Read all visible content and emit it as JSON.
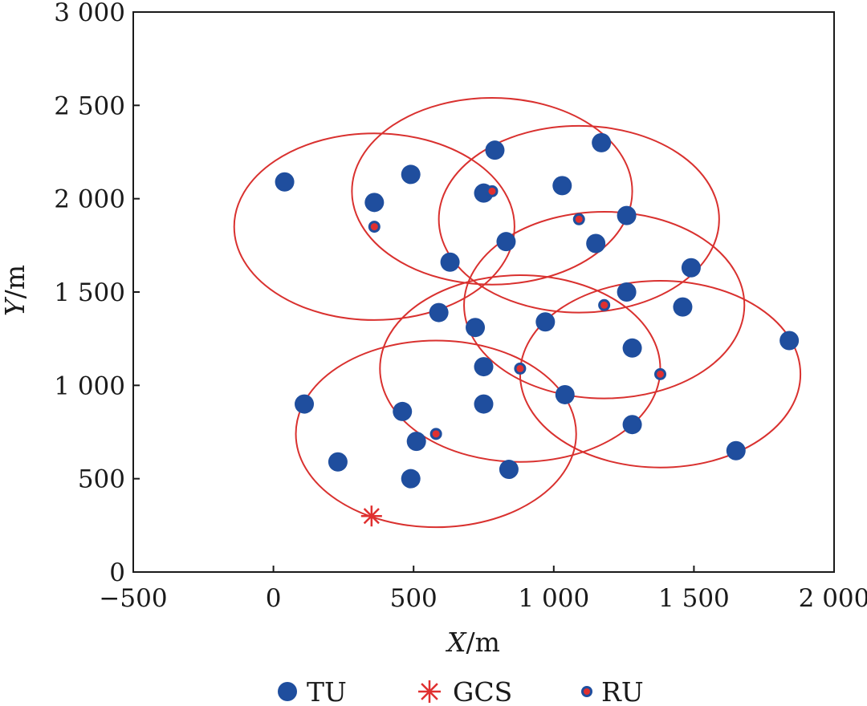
{
  "chart_data": {
    "type": "scatter",
    "xlabel": {
      "var": "X",
      "unit": "/m"
    },
    "ylabel": {
      "var": "Y",
      "unit": "/m"
    },
    "xlim": [
      -500,
      2000
    ],
    "ylim": [
      0,
      3000
    ],
    "xticks": [
      -500,
      0,
      500,
      1000,
      1500,
      2000
    ],
    "yticks": [
      0,
      500,
      1000,
      1500,
      2000,
      2500,
      3000
    ],
    "xtick_labels": [
      "−500",
      "0",
      "500",
      "1 000",
      "1 500",
      "2 000"
    ],
    "ytick_labels": [
      "0",
      "500",
      "1 000",
      "1 500",
      "2 000",
      "2 500",
      "3 000"
    ],
    "grid": false,
    "legend_position": "bottom",
    "colors": {
      "tu": "#1f4e9e",
      "ru": "#e03030",
      "gcs": "#e03030",
      "circle": "#d9312f"
    },
    "series": [
      {
        "name": "TU",
        "marker": "filled-circle",
        "points": [
          [
            40,
            2090
          ],
          [
            490,
            2130
          ],
          [
            360,
            1980
          ],
          [
            790,
            2260
          ],
          [
            750,
            2030
          ],
          [
            1030,
            2070
          ],
          [
            1170,
            2300
          ],
          [
            1260,
            1910
          ],
          [
            830,
            1770
          ],
          [
            1150,
            1760
          ],
          [
            630,
            1660
          ],
          [
            1490,
            1630
          ],
          [
            1260,
            1500
          ],
          [
            1460,
            1420
          ],
          [
            590,
            1390
          ],
          [
            720,
            1310
          ],
          [
            970,
            1340
          ],
          [
            1280,
            1200
          ],
          [
            1840,
            1240
          ],
          [
            750,
            1100
          ],
          [
            110,
            900
          ],
          [
            460,
            860
          ],
          [
            750,
            900
          ],
          [
            1040,
            950
          ],
          [
            510,
            700
          ],
          [
            1280,
            790
          ],
          [
            230,
            590
          ],
          [
            490,
            500
          ],
          [
            840,
            550
          ],
          [
            1650,
            650
          ]
        ]
      },
      {
        "name": "GCS",
        "marker": "asterisk",
        "points": [
          [
            350,
            300
          ]
        ]
      },
      {
        "name": "RU",
        "marker": "small-dot",
        "points": [
          [
            360,
            1850
          ],
          [
            780,
            2040
          ],
          [
            1090,
            1890
          ],
          [
            1180,
            1430
          ],
          [
            880,
            1090
          ],
          [
            1380,
            1060
          ],
          [
            580,
            740
          ]
        ]
      }
    ],
    "coverage_ellipses": [
      {
        "cx": 360,
        "cy": 1850,
        "rx": 500,
        "ry": 500
      },
      {
        "cx": 780,
        "cy": 2040,
        "rx": 500,
        "ry": 500
      },
      {
        "cx": 1090,
        "cy": 1890,
        "rx": 500,
        "ry": 500
      },
      {
        "cx": 1180,
        "cy": 1430,
        "rx": 500,
        "ry": 500
      },
      {
        "cx": 880,
        "cy": 1090,
        "rx": 500,
        "ry": 500
      },
      {
        "cx": 1380,
        "cy": 1060,
        "rx": 500,
        "ry": 500
      },
      {
        "cx": 580,
        "cy": 740,
        "rx": 500,
        "ry": 500
      }
    ],
    "legend": [
      {
        "label": "TU",
        "marker": "filled-circle"
      },
      {
        "label": "GCS",
        "marker": "asterisk"
      },
      {
        "label": "RU",
        "marker": "small-dot"
      }
    ]
  }
}
